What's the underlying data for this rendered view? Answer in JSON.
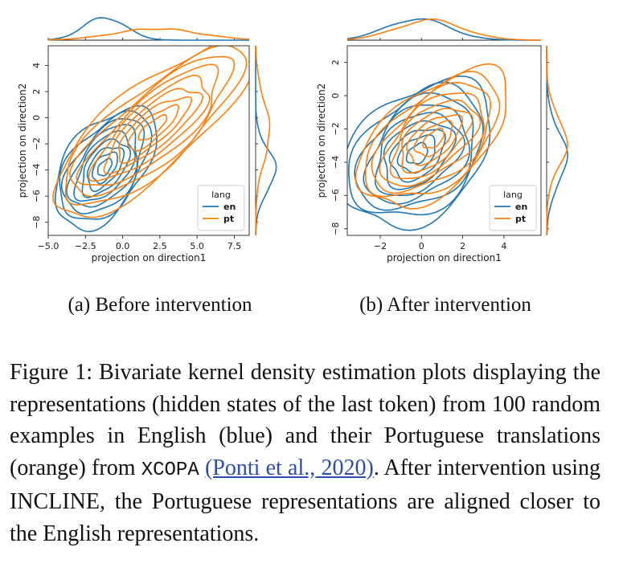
{
  "figure": {
    "colors": {
      "en": "#1f77b4",
      "pt": "#ff7f0e"
    },
    "panels": [
      {
        "sublabel": "(a) Before intervention",
        "legend_title": "lang",
        "series": [
          "en",
          "pt"
        ],
        "chart_data": {
          "type": "kde-joint",
          "xlabel": "projection on direction1",
          "ylabel": "projection on direction2",
          "xticks": [
            "−5.0",
            "−2.5",
            "0.0",
            "2.5",
            "5.0",
            "7.5"
          ],
          "yticks": [
            "−8",
            "−6",
            "−4",
            "−2",
            "0",
            "2",
            "4"
          ],
          "xlim": [
            -5.0,
            8.5
          ],
          "ylim": [
            -9.0,
            5.5
          ],
          "legend_placement": "lower-right",
          "density": [
            {
              "series": "en",
              "center": [
                -1.2,
                -3.8
              ],
              "spread": [
                1.4,
                1.9
              ],
              "corr": 0.5,
              "marginal_x": [
                -1.2,
                1.4
              ],
              "marginal_y": [
                -4.0,
                1.6
              ]
            },
            {
              "series": "pt",
              "center": [
                2.0,
                -0.8
              ],
              "spread": [
                2.8,
                2.8
              ],
              "corr": 0.8,
              "marginal_x": [
                2.3,
                2.8
              ],
              "marginal_y": [
                -1.0,
                2.3
              ]
            }
          ]
        }
      },
      {
        "sublabel": "(b) After intervention",
        "legend_title": "lang",
        "series": [
          "en",
          "pt"
        ],
        "chart_data": {
          "type": "kde-joint",
          "xlabel": "projection on direction1",
          "ylabel": "projection on direction2",
          "xticks": [
            "−2",
            "0",
            "2",
            "4"
          ],
          "yticks": [
            "−8",
            "−6",
            "−4",
            "−2",
            "0",
            "2"
          ],
          "xlim": [
            -3.6,
            5.8
          ],
          "ylim": [
            -8.4,
            3.0
          ],
          "legend_placement": "lower-right",
          "density": [
            {
              "series": "en",
              "center": [
                -0.2,
                -3.5
              ],
              "spread": [
                1.5,
                1.8
              ],
              "corr": 0.35,
              "marginal_x": [
                -0.2,
                1.5
              ],
              "marginal_y": [
                -3.7,
                1.6
              ]
            },
            {
              "series": "pt",
              "center": [
                0.6,
                -2.6
              ],
              "spread": [
                1.5,
                1.7
              ],
              "corr": 0.55,
              "marginal_x": [
                0.4,
                1.6
              ],
              "marginal_y": [
                -2.8,
                1.5
              ]
            }
          ]
        }
      }
    ]
  },
  "caption": {
    "label": "Figure 1:",
    "text_1": " Bivariate kernel density estimation plots displaying the representations (hidden states of the last token) from 100 random examples in English (blue) and their Portuguese translations (orange) from ",
    "dataset": "XCOPA",
    "citation": "(Ponti et al., 2020)",
    "text_2": ". After intervention using INCLINE, the Portuguese representations are aligned closer to the English representations."
  }
}
